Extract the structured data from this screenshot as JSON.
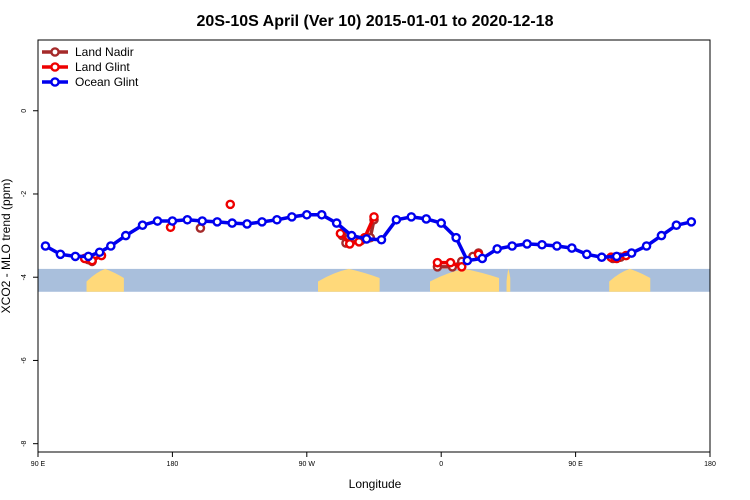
{
  "chart_data": {
    "type": "line",
    "title": "20S-10S April (Ver 10)   2015-01-01 to 2020-12-18",
    "xlabel": "Longitude",
    "ylabel": "XCO2 - MLO trend (ppm)",
    "xlim": [
      90,
      450
    ],
    "ylim": [
      -8.2,
      1.7
    ],
    "x_ticks": [
      {
        "value": 90,
        "label": "90 E"
      },
      {
        "value": 162,
        "label": "180"
      },
      {
        "value": 234,
        "label": "90 W"
      },
      {
        "value": 306,
        "label": "0"
      },
      {
        "value": 378,
        "label": "90 E"
      },
      {
        "value": 450,
        "label": "180"
      }
    ],
    "y_ticks": [
      {
        "value": 0,
        "label": "0"
      },
      {
        "value": -2,
        "label": "-2"
      },
      {
        "value": -4,
        "label": "-4"
      },
      {
        "value": -6,
        "label": "-6"
      },
      {
        "value": -8,
        "label": "-8"
      }
    ],
    "grid": false,
    "legend_position": "top-left",
    "map_strip": {
      "y_range": [
        -4.35,
        -3.8
      ],
      "ocean_color": "#a9bfdc",
      "land_color": "#ffd97a",
      "land_x_ranges": [
        [
          116,
          136
        ],
        [
          240,
          273
        ],
        [
          300,
          337
        ],
        [
          341,
          343
        ],
        [
          396,
          418
        ]
      ]
    },
    "series": [
      {
        "name": "Land Nadir",
        "color": "#a52a2a",
        "points": [
          [
            117,
            -3.58
          ],
          [
            119,
            -3.62
          ],
          [
            177,
            -2.82
          ],
          [
            253,
            -3.0
          ],
          [
            255,
            -3.18
          ],
          [
            263,
            -3.12
          ],
          [
            268,
            -3.05
          ],
          [
            270,
            -2.62
          ],
          [
            304,
            -3.75
          ],
          [
            312,
            -3.75
          ],
          [
            317,
            -3.62
          ],
          [
            323,
            -3.5
          ],
          [
            326,
            -3.42
          ],
          [
            398,
            -3.55
          ],
          [
            402,
            -3.52
          ]
        ]
      },
      {
        "name": "Land Glint",
        "color": "#ee0000",
        "points": [
          [
            115,
            -3.55
          ],
          [
            119,
            -3.6
          ],
          [
            124,
            -3.48
          ],
          [
            161,
            -2.8
          ],
          [
            193,
            -2.25
          ],
          [
            252,
            -2.95
          ],
          [
            257,
            -3.2
          ],
          [
            262,
            -3.15
          ],
          [
            265,
            -3.05
          ],
          [
            270,
            -2.55
          ],
          [
            304,
            -3.65
          ],
          [
            311,
            -3.65
          ],
          [
            317,
            -3.75
          ],
          [
            326,
            -3.45
          ],
          [
            397,
            -3.52
          ],
          [
            399,
            -3.52
          ],
          [
            400,
            -3.55
          ],
          [
            405,
            -3.48
          ]
        ]
      },
      {
        "name": "Ocean Glint",
        "color": "#0000ee",
        "points": [
          [
            94,
            -3.25
          ],
          [
            102,
            -3.45
          ],
          [
            110,
            -3.5
          ],
          [
            117,
            -3.5
          ],
          [
            123,
            -3.4
          ],
          [
            129,
            -3.25
          ],
          [
            137,
            -3.0
          ],
          [
            146,
            -2.75
          ],
          [
            154,
            -2.65
          ],
          [
            162,
            -2.65
          ],
          [
            170,
            -2.62
          ],
          [
            178,
            -2.65
          ],
          [
            186,
            -2.67
          ],
          [
            194,
            -2.7
          ],
          [
            202,
            -2.72
          ],
          [
            210,
            -2.67
          ],
          [
            218,
            -2.62
          ],
          [
            226,
            -2.55
          ],
          [
            234,
            -2.5
          ],
          [
            242,
            -2.5
          ],
          [
            250,
            -2.7
          ],
          [
            258,
            -3.0
          ],
          [
            266,
            -3.08
          ],
          [
            274,
            -3.1
          ],
          [
            282,
            -2.62
          ],
          [
            290,
            -2.55
          ],
          [
            298,
            -2.6
          ],
          [
            306,
            -2.7
          ],
          [
            314,
            -3.05
          ],
          [
            320,
            -3.6
          ],
          [
            328,
            -3.55
          ],
          [
            336,
            -3.32
          ],
          [
            344,
            -3.25
          ],
          [
            352,
            -3.2
          ],
          [
            360,
            -3.22
          ],
          [
            368,
            -3.25
          ],
          [
            376,
            -3.3
          ],
          [
            384,
            -3.45
          ],
          [
            392,
            -3.52
          ],
          [
            400,
            -3.5
          ],
          [
            408,
            -3.42
          ],
          [
            416,
            -3.25
          ],
          [
            424,
            -3.0
          ],
          [
            432,
            -2.75
          ],
          [
            440,
            -2.67
          ]
        ]
      }
    ]
  }
}
